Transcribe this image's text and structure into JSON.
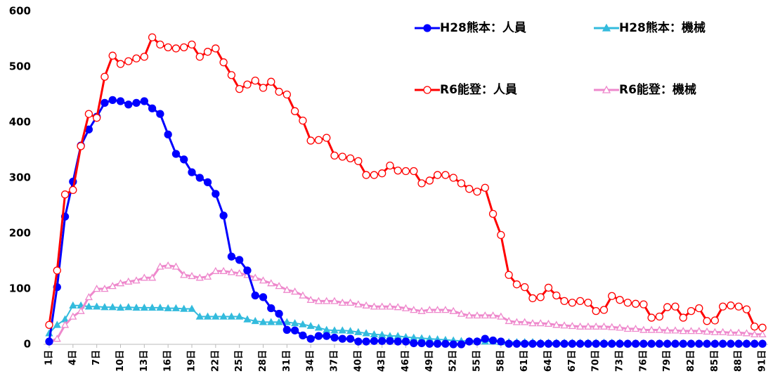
{
  "chart_data": {
    "type": "line",
    "categories": [
      "1日",
      null,
      null,
      "4日",
      null,
      null,
      "7日",
      null,
      null,
      "10日",
      null,
      null,
      "13日",
      null,
      null,
      "16日",
      null,
      null,
      "19日",
      null,
      null,
      "22日",
      null,
      null,
      "25日",
      null,
      null,
      "28日",
      null,
      null,
      "31日",
      null,
      null,
      "34日",
      null,
      null,
      "37日",
      null,
      null,
      "40日",
      null,
      null,
      "43日",
      null,
      null,
      "46日",
      null,
      null,
      "49日",
      null,
      null,
      "52日",
      null,
      null,
      "55日",
      null,
      null,
      "58日",
      null,
      null,
      "61日",
      null,
      null,
      "64日",
      null,
      null,
      "67日",
      null,
      null,
      "70日",
      null,
      null,
      "73日",
      null,
      null,
      "76日",
      null,
      null,
      "79日",
      null,
      null,
      "82日",
      null,
      null,
      "85日",
      null,
      null,
      "88日",
      null,
      null,
      "91日"
    ],
    "ylim": [
      0,
      600
    ],
    "yticks": [
      0,
      100,
      200,
      300,
      400,
      500,
      600
    ],
    "grid": false,
    "series": [
      {
        "name": "H28熊本：人員",
        "color": "#0000ff",
        "marker": "circle",
        "filled": true,
        "values": [
          5,
          103,
          230,
          293,
          358,
          387,
          410,
          435,
          440,
          438,
          432,
          435,
          438,
          425,
          415,
          378,
          343,
          333,
          310,
          300,
          292,
          271,
          232,
          158,
          152,
          133,
          88,
          85,
          65,
          55,
          26,
          25,
          16,
          10,
          15,
          15,
          12,
          10,
          10,
          5,
          5,
          6,
          6,
          6,
          5,
          5,
          2,
          2,
          1,
          1,
          1,
          0,
          0,
          5,
          5,
          10,
          7,
          5,
          1,
          1,
          1,
          1,
          1,
          1,
          1,
          1,
          1,
          1,
          1,
          1,
          1,
          1,
          1,
          1,
          1,
          1,
          1,
          1,
          1,
          1,
          1,
          1,
          1,
          1,
          1,
          1,
          1,
          1,
          1,
          1,
          1
        ]
      },
      {
        "name": "H28熊本：機械",
        "color": "#33bbdd",
        "marker": "triangle",
        "filled": true,
        "values": [
          20,
          35,
          45,
          70,
          70,
          68,
          68,
          67,
          67,
          66,
          67,
          66,
          66,
          66,
          66,
          65,
          65,
          64,
          64,
          50,
          50,
          50,
          50,
          50,
          50,
          45,
          42,
          40,
          40,
          40,
          40,
          38,
          36,
          33,
          30,
          26,
          25,
          25,
          24,
          22,
          20,
          18,
          17,
          15,
          15,
          13,
          12,
          11,
          10,
          9,
          8,
          7,
          6,
          6,
          6,
          5,
          5,
          4,
          4,
          4,
          4,
          4,
          3,
          3,
          3,
          3,
          3,
          3,
          3,
          3,
          3,
          3,
          3,
          2,
          2,
          2,
          2,
          2,
          2,
          2,
          2,
          2,
          2,
          2,
          2,
          2,
          2,
          2,
          2,
          2,
          2
        ]
      },
      {
        "name": "R6能登：人員",
        "color": "#ff0000",
        "marker": "circle",
        "filled": false,
        "values": [
          35,
          133,
          270,
          278,
          357,
          415,
          408,
          482,
          520,
          505,
          510,
          515,
          518,
          553,
          540,
          535,
          533,
          535,
          540,
          518,
          527,
          533,
          508,
          485,
          460,
          468,
          475,
          462,
          473,
          455,
          450,
          420,
          403,
          367,
          368,
          372,
          340,
          338,
          335,
          330,
          305,
          305,
          308,
          322,
          313,
          312,
          312,
          290,
          295,
          305,
          305,
          300,
          290,
          280,
          275,
          282,
          235,
          197,
          125,
          108,
          103,
          83,
          85,
          102,
          88,
          78,
          75,
          78,
          75,
          60,
          62,
          87,
          80,
          75,
          73,
          72,
          48,
          50,
          67,
          68,
          48,
          60,
          65,
          42,
          43,
          68,
          70,
          68,
          63,
          32,
          30
        ]
      },
      {
        "name": "R6能登：機械",
        "color": "#ee88cc",
        "marker": "triangle",
        "filled": false,
        "values": [
          5,
          10,
          35,
          50,
          60,
          85,
          100,
          100,
          105,
          110,
          113,
          115,
          120,
          120,
          140,
          142,
          140,
          125,
          123,
          120,
          122,
          132,
          132,
          130,
          128,
          125,
          120,
          115,
          110,
          105,
          98,
          95,
          88,
          80,
          78,
          78,
          78,
          75,
          75,
          72,
          70,
          68,
          68,
          68,
          67,
          65,
          62,
          60,
          62,
          62,
          62,
          60,
          55,
          52,
          52,
          52,
          52,
          50,
          42,
          40,
          40,
          38,
          38,
          37,
          35,
          34,
          33,
          32,
          32,
          32,
          32,
          31,
          30,
          28,
          28,
          26,
          26,
          26,
          25,
          25,
          24,
          24,
          24,
          23,
          22,
          22,
          21,
          21,
          20,
          18,
          18
        ]
      }
    ]
  }
}
